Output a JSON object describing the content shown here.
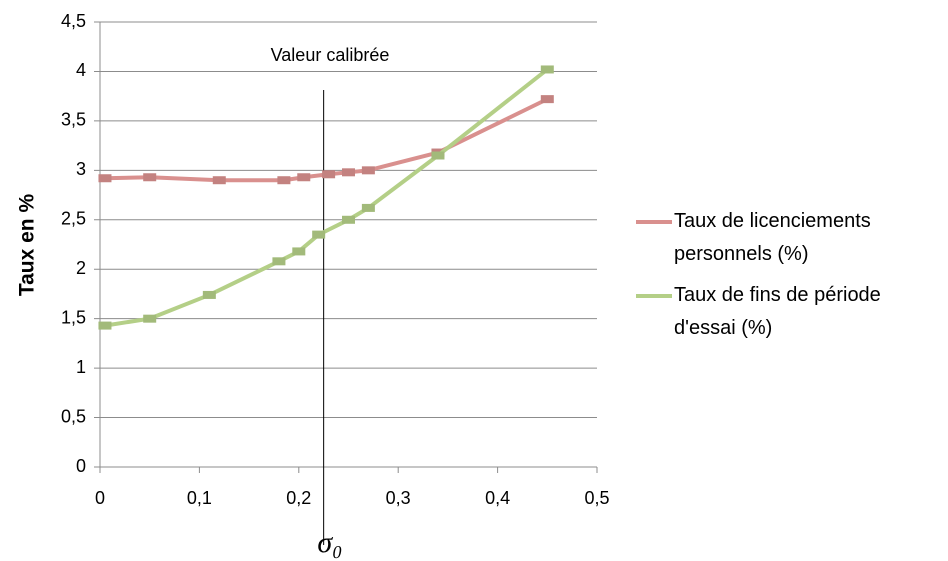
{
  "chart_data": {
    "type": "line",
    "ylabel": "Taux en %",
    "xlabel": "σ₀",
    "annotation": {
      "text": "Valeur calibrée",
      "x": 0.225
    },
    "xlim": [
      0,
      0.5
    ],
    "xticks": [
      0,
      {
        "value": 0.1,
        "label": "0,1"
      },
      {
        "value": 0.2,
        "label": "0,2"
      },
      {
        "value": 0.3,
        "label": "0,3"
      },
      {
        "value": 0.4,
        "label": "0,4"
      },
      {
        "value": 0.5,
        "label": "0,5"
      }
    ],
    "ylim": [
      0,
      4.5
    ],
    "yticks": [
      0,
      {
        "value": 0.5,
        "label": "0,5"
      },
      1,
      {
        "value": 1.5,
        "label": "1,5"
      },
      2,
      {
        "value": 2.5,
        "label": "2,5"
      },
      3,
      {
        "value": 3.5,
        "label": "3,5"
      },
      4,
      {
        "value": 4.5,
        "label": "4,5"
      }
    ],
    "grid": true,
    "legend": "right",
    "series": [
      {
        "name": "Taux de licenciements personnels (%)",
        "color": "#d9908e",
        "x": [
          0.005,
          0.05,
          0.12,
          0.185,
          0.205,
          0.23,
          0.25,
          0.27,
          0.34,
          0.45
        ],
        "values": [
          2.92,
          2.93,
          2.9,
          2.9,
          2.93,
          2.96,
          2.98,
          3.0,
          3.18,
          3.72
        ]
      },
      {
        "name": "Taux de fins de période d'essai (%)",
        "color": "#b4cf87",
        "x": [
          0.005,
          0.05,
          0.11,
          0.18,
          0.2,
          0.22,
          0.25,
          0.27,
          0.34,
          0.45
        ],
        "values": [
          1.43,
          1.5,
          1.74,
          2.08,
          2.18,
          2.35,
          2.5,
          2.62,
          3.15,
          4.02
        ]
      }
    ]
  }
}
